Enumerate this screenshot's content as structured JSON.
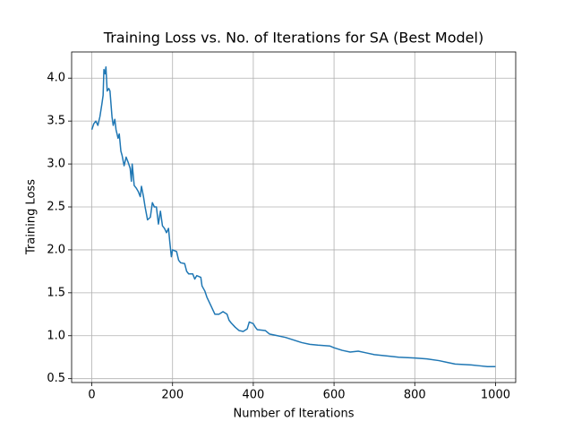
{
  "chart_data": {
    "type": "line",
    "title": "Training Loss vs. No. of Iterations for SA (Best Model)",
    "x_label": "Number of Iterations",
    "y_label": "Training Loss",
    "xlim": [
      -50,
      1050
    ],
    "ylim": [
      0.455,
      4.305
    ],
    "xticks": [
      0,
      200,
      400,
      600,
      800,
      1000
    ],
    "yticks": [
      0.5,
      {
        "value": 1,
        "label": "1.0"
      },
      1.5,
      {
        "value": 2,
        "label": "2.0"
      },
      2.5,
      {
        "value": 3,
        "label": "3.0"
      },
      3.5,
      {
        "value": 4,
        "label": "4.0"
      }
    ],
    "grid": true,
    "series": [
      {
        "color": "#1f77b4",
        "x": [
          0,
          5,
          10,
          15,
          20,
          25,
          28,
          30,
          33,
          35,
          38,
          42,
          45,
          50,
          53,
          57,
          60,
          65,
          68,
          72,
          75,
          80,
          85,
          90,
          95,
          98,
          100,
          105,
          110,
          115,
          120,
          123,
          128,
          132,
          138,
          145,
          150,
          155,
          160,
          165,
          170,
          175,
          180,
          185,
          190,
          193,
          197,
          200,
          210,
          215,
          220,
          230,
          235,
          240,
          250,
          255,
          260,
          270,
          273,
          280,
          285,
          290,
          295,
          300,
          305,
          315,
          325,
          335,
          340,
          345,
          355,
          365,
          375,
          385,
          390,
          400,
          405,
          410,
          430,
          440,
          460,
          480,
          500,
          520,
          540,
          560,
          590,
          600,
          620,
          640,
          660,
          680,
          700,
          740,
          760,
          800,
          830,
          860,
          880,
          900,
          940,
          960,
          980,
          1000
        ],
        "values": [
          3.4,
          3.47,
          3.5,
          3.45,
          3.55,
          3.7,
          3.8,
          4.1,
          4.05,
          4.13,
          3.85,
          3.88,
          3.85,
          3.55,
          3.45,
          3.52,
          3.4,
          3.3,
          3.35,
          3.15,
          3.1,
          2.98,
          3.08,
          3.02,
          2.95,
          2.8,
          3.0,
          2.75,
          2.72,
          2.68,
          2.62,
          2.74,
          2.62,
          2.5,
          2.35,
          2.38,
          2.55,
          2.5,
          2.5,
          2.3,
          2.45,
          2.28,
          2.25,
          2.2,
          2.25,
          2.1,
          1.92,
          2.0,
          1.98,
          1.88,
          1.85,
          1.84,
          1.75,
          1.72,
          1.72,
          1.66,
          1.7,
          1.68,
          1.58,
          1.52,
          1.45,
          1.4,
          1.35,
          1.3,
          1.25,
          1.25,
          1.28,
          1.25,
          1.18,
          1.15,
          1.1,
          1.06,
          1.05,
          1.08,
          1.16,
          1.14,
          1.1,
          1.07,
          1.06,
          1.02,
          1.0,
          0.98,
          0.95,
          0.92,
          0.9,
          0.89,
          0.88,
          0.86,
          0.83,
          0.81,
          0.82,
          0.8,
          0.78,
          0.76,
          0.75,
          0.74,
          0.73,
          0.71,
          0.69,
          0.67,
          0.66,
          0.65,
          0.64,
          0.64
        ]
      }
    ]
  }
}
